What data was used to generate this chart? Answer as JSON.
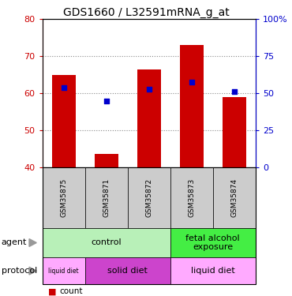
{
  "title": "GDS1660 / L32591mRNA_g_at",
  "samples": [
    "GSM35875",
    "GSM35871",
    "GSM35872",
    "GSM35873",
    "GSM35874"
  ],
  "bar_values": [
    65,
    43.5,
    66.5,
    73,
    59
  ],
  "bar_bottom": 40,
  "dot_values": [
    61.5,
    58,
    61,
    63,
    60.5
  ],
  "left_ylim": [
    40,
    80
  ],
  "left_yticks": [
    40,
    50,
    60,
    70,
    80
  ],
  "right_ylim": [
    0,
    100
  ],
  "right_yticks": [
    0,
    25,
    50,
    75,
    100
  ],
  "right_yticklabels": [
    "0",
    "25",
    "50",
    "75",
    "100%"
  ],
  "bar_color": "#cc0000",
  "dot_color": "#0000cc",
  "left_tick_color": "#cc0000",
  "right_tick_color": "#0000cc",
  "sample_box_color": "#cccccc",
  "agent_groups": [
    {
      "text": "control",
      "start": 0,
      "end": 2,
      "color": "#b8f0b8"
    },
    {
      "text": "fetal alcohol\nexposure",
      "start": 3,
      "end": 4,
      "color": "#44ee44"
    }
  ],
  "protocol_groups": [
    {
      "text": "liquid diet",
      "start": 0,
      "end": 0,
      "color": "#ffaaff"
    },
    {
      "text": "solid diet",
      "start": 1,
      "end": 2,
      "color": "#cc44cc"
    },
    {
      "text": "liquid diet",
      "start": 3,
      "end": 4,
      "color": "#ffaaff"
    }
  ],
  "legend_count_color": "#cc0000",
  "legend_dot_color": "#0000cc"
}
